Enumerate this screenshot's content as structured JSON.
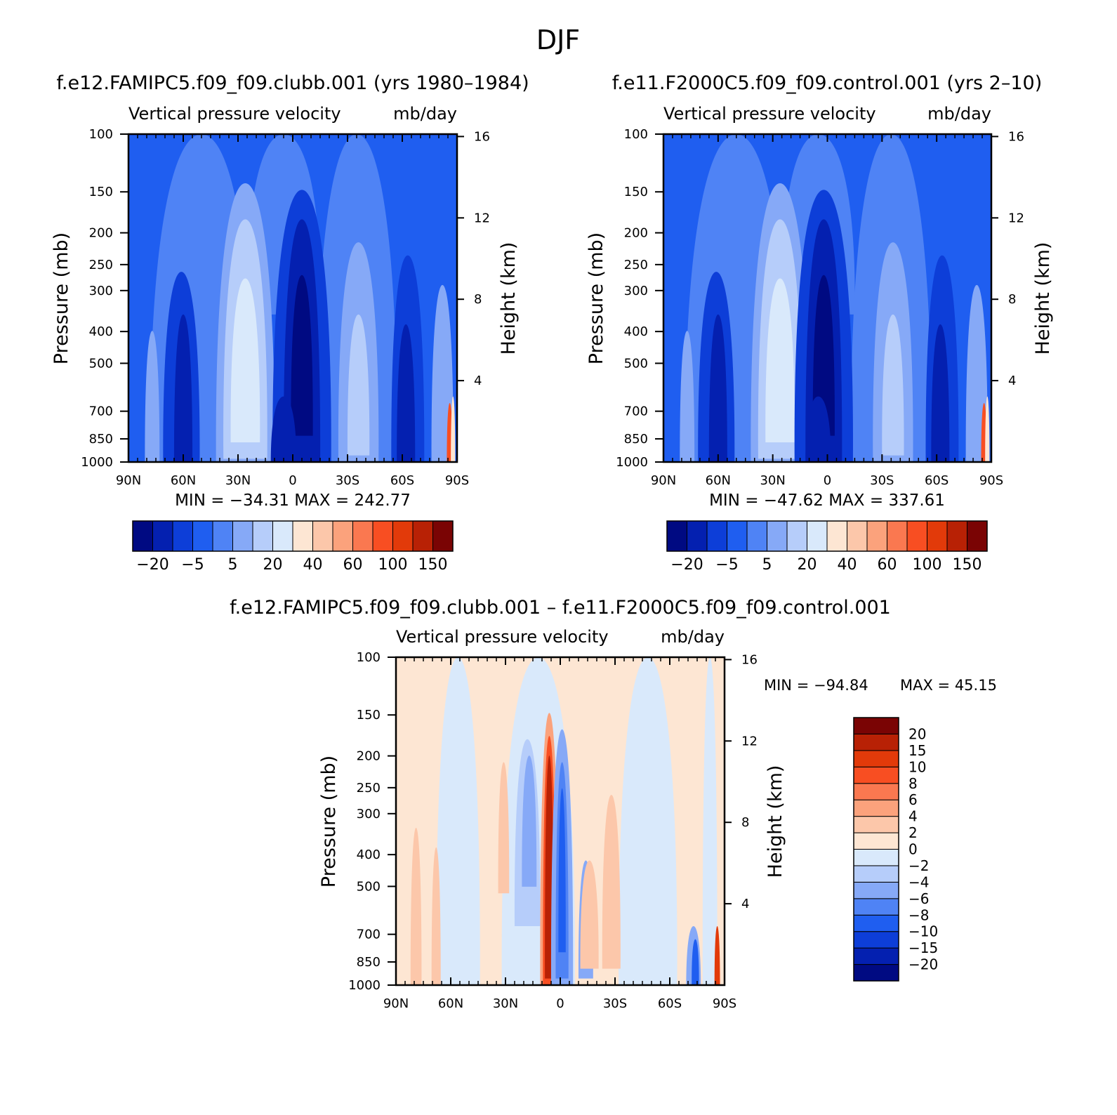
{
  "page_title": "DJF",
  "panels": [
    {
      "title": "f.e12.FAMIPC5.f09_f09.clubb.001 (yrs 1980–1984)",
      "subtitle_left": "Vertical pressure velocity",
      "subtitle_right": "mb/day",
      "ylabel": "Pressure (mb)",
      "ylabel_right": "Height (km)",
      "stats": "MIN = −34.31   MAX = 242.77",
      "colorbar_labels": [
        "−20",
        "−5",
        "5",
        "20",
        "40",
        "60",
        "100",
        "150"
      ]
    },
    {
      "title": "f.e11.F2000C5.f09_f09.control.001 (yrs 2–10)",
      "subtitle_left": "Vertical pressure velocity",
      "subtitle_right": "mb/day",
      "ylabel": "Pressure (mb)",
      "ylabel_right": "Height (km)",
      "stats": "MIN = −47.62   MAX = 337.61",
      "colorbar_labels": [
        "−20",
        "−5",
        "5",
        "20",
        "40",
        "60",
        "100",
        "150"
      ]
    },
    {
      "title": "f.e12.FAMIPC5.f09_f09.clubb.001 – f.e11.F2000C5.f09_f09.control.001",
      "subtitle_left": "Vertical pressure velocity",
      "subtitle_right": "mb/day",
      "ylabel": "Pressure (mb)",
      "ylabel_right": "Height (km)",
      "stats_min": "MIN = −94.84",
      "stats_max": "MAX =   45.15",
      "colorbar_labels": [
        "20",
        "15",
        "10",
        "8",
        "6",
        "4",
        "2",
        "0",
        "−2",
        "−4",
        "−6",
        "−8",
        "−10",
        "−15",
        "−20"
      ]
    }
  ],
  "chart_data": [
    {
      "type": "heatmap",
      "title": "f.e12.FAMIPC5.f09_f09.clubb.001 (yrs 1980–1984)",
      "ylabel": "Pressure (mb)",
      "ylabel_right": "Height (km)",
      "x_ticks": [
        "90N",
        "60N",
        "30N",
        "0",
        "30S",
        "60S",
        "90S"
      ],
      "x_values": [
        90,
        60,
        30,
        0,
        -30,
        -60,
        -90
      ],
      "y_ticks": [
        100,
        150,
        200,
        250,
        300,
        400,
        500,
        700,
        850,
        1000
      ],
      "y_scale": "log",
      "y_right_ticks": [
        16,
        12,
        8,
        4
      ],
      "units": "mb/day",
      "min": -34.31,
      "max": 242.77,
      "contour_levels": [
        -25,
        -20,
        -10,
        -5,
        0,
        5,
        10,
        20,
        30,
        40,
        50,
        60,
        80,
        100,
        150
      ],
      "colormap": [
        "#000a82",
        "#0420b0",
        "#0d3ed8",
        "#1f5ef0",
        "#4f83f5",
        "#86a9f7",
        "#b6cdfa",
        "#d9e9fb",
        "#fde6d3",
        "#fcc7aa",
        "#fba27c",
        "#fa7850",
        "#f84e22",
        "#e23a0a",
        "#b82105",
        "#7a0404"
      ]
    },
    {
      "type": "heatmap",
      "title": "f.e11.F2000C5.f09_f09.control.001 (yrs 2–10)",
      "ylabel": "Pressure (mb)",
      "ylabel_right": "Height (km)",
      "x_ticks": [
        "90N",
        "60N",
        "30N",
        "0",
        "30S",
        "60S",
        "90S"
      ],
      "x_values": [
        90,
        60,
        30,
        0,
        -30,
        -60,
        -90
      ],
      "y_ticks": [
        100,
        150,
        200,
        250,
        300,
        400,
        500,
        700,
        850,
        1000
      ],
      "y_scale": "log",
      "y_right_ticks": [
        16,
        12,
        8,
        4
      ],
      "units": "mb/day",
      "min": -47.62,
      "max": 337.61,
      "contour_levels": [
        -25,
        -20,
        -10,
        -5,
        0,
        5,
        10,
        20,
        30,
        40,
        50,
        60,
        80,
        100,
        150
      ],
      "colormap": [
        "#000a82",
        "#0420b0",
        "#0d3ed8",
        "#1f5ef0",
        "#4f83f5",
        "#86a9f7",
        "#b6cdfa",
        "#d9e9fb",
        "#fde6d3",
        "#fcc7aa",
        "#fba27c",
        "#fa7850",
        "#f84e22",
        "#e23a0a",
        "#b82105",
        "#7a0404"
      ]
    },
    {
      "type": "heatmap",
      "title": "f.e12.FAMIPC5.f09_f09.clubb.001 – f.e11.F2000C5.f09_f09.control.001",
      "ylabel": "Pressure (mb)",
      "ylabel_right": "Height (km)",
      "x_ticks": [
        "90N",
        "60N",
        "30N",
        "0",
        "30S",
        "60S",
        "90S"
      ],
      "x_values": [
        90,
        60,
        30,
        0,
        -30,
        -60,
        -90
      ],
      "y_ticks": [
        100,
        150,
        200,
        250,
        300,
        400,
        500,
        700,
        850,
        1000
      ],
      "y_scale": "log",
      "y_right_ticks": [
        16,
        12,
        8,
        4
      ],
      "units": "mb/day",
      "min": -94.84,
      "max": 45.15,
      "contour_levels": [
        -20,
        -15,
        -10,
        -8,
        -6,
        -4,
        -2,
        0,
        2,
        4,
        6,
        8,
        10,
        15,
        20
      ],
      "colormap": [
        "#000a82",
        "#0420b0",
        "#0d3ed8",
        "#1f5ef0",
        "#4f83f5",
        "#86a9f7",
        "#b6cdfa",
        "#d9e9fb",
        "#fde6d3",
        "#fcc7aa",
        "#fba27c",
        "#fa7850",
        "#f84e22",
        "#e23a0a",
        "#b82105",
        "#7a0404"
      ]
    }
  ]
}
